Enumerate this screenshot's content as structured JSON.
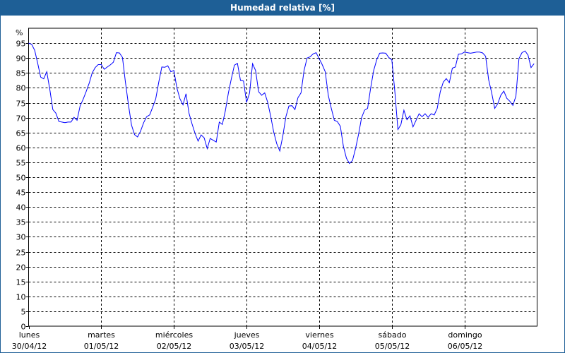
{
  "window": {
    "title": "Humedad relativa [%]"
  },
  "chart_data": {
    "type": "line",
    "title": "Humedad relativa [%]",
    "ylabel": "%",
    "ylim": [
      0,
      100
    ],
    "yticks": [
      0,
      5,
      10,
      15,
      20,
      25,
      30,
      35,
      40,
      45,
      50,
      55,
      60,
      65,
      70,
      75,
      80,
      85,
      90,
      95
    ],
    "grid": true,
    "line_color": "#0000ff",
    "x_interval": "hourly",
    "days": [
      {
        "day": "lunes",
        "date": "30/04/12",
        "values": [
          95,
          94.6,
          92.6,
          88.2,
          83.6,
          83,
          85.4,
          79.5,
          72.7,
          71.5,
          68.7,
          68.5,
          68.3,
          68.5,
          68.5,
          70.1,
          69.1,
          73.9,
          76.1,
          78.7,
          81.5,
          85,
          86.8,
          87.8
        ]
      },
      {
        "day": "martes",
        "date": "01/05/12",
        "values": [
          87.8,
          86.2,
          87,
          87.7,
          88.6,
          91.8,
          91.7,
          90.2,
          81.9,
          74.3,
          67.5,
          64.3,
          63.5,
          65.5,
          68.3,
          70.3,
          70.9,
          73.5,
          76.3,
          81.9,
          87,
          86.9,
          87.4,
          85.4
        ]
      },
      {
        "day": "miércoles",
        "date": "02/05/12",
        "values": [
          85.8,
          79.9,
          76.3,
          74.3,
          78,
          71.5,
          67.9,
          64.7,
          62.1,
          64.2,
          63.2,
          59.6,
          63,
          62.4,
          61.8,
          68.5,
          67.7,
          72.3,
          78.3,
          83.1,
          87.6,
          88.2,
          82.5,
          82.3
        ]
      },
      {
        "day": "jueves",
        "date": "03/05/12",
        "values": [
          75.1,
          78.3,
          88.1,
          85.8,
          78.7,
          77.5,
          78.3,
          75.1,
          70.3,
          65.1,
          61.2,
          58.8,
          63.9,
          70.3,
          73.9,
          74,
          72.7,
          76.7,
          78.3,
          85.8,
          90,
          90.4,
          91.4,
          91.8
        ]
      },
      {
        "day": "viernes",
        "date": "04/05/12",
        "values": [
          89.8,
          87.8,
          85.4,
          77.5,
          73.1,
          69.1,
          68.7,
          67.1,
          60.4,
          56.4,
          54.6,
          55.6,
          59.6,
          64.3,
          69.9,
          72.5,
          73.1,
          79.9,
          85.8,
          89.4,
          91.6,
          91.7,
          91.6,
          90.2
        ]
      },
      {
        "day": "sábado",
        "date": "05/05/12",
        "values": [
          89.4,
          78.7,
          66,
          67.6,
          72.5,
          69.3,
          70.6,
          66.9,
          69.1,
          71.3,
          70.3,
          71.3,
          70.1,
          71.3,
          70.9,
          73.1,
          78.7,
          81.9,
          83.1,
          81.7,
          86.6,
          87,
          91.3,
          91.4
        ]
      },
      {
        "day": "domingo",
        "date": "06/05/12",
        "values": [
          92,
          91.8,
          91.6,
          91.8,
          92,
          92,
          91.7,
          90.6,
          82.7,
          78.3,
          73.1,
          74.7,
          77.5,
          78.9,
          76.5,
          75.5,
          74.1,
          77.2,
          89.8,
          91.8,
          92.4,
          91,
          86.8,
          88.1
        ]
      }
    ]
  }
}
